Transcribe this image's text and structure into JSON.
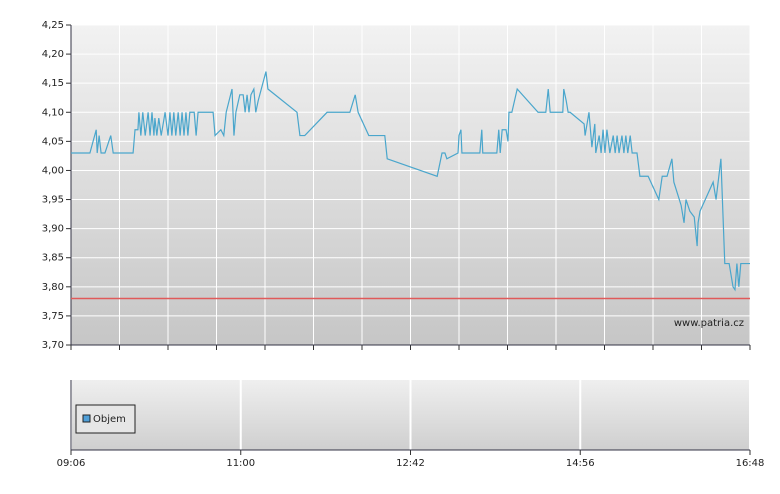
{
  "chart_data": [
    {
      "type": "line",
      "x": [
        0,
        0.39,
        0.52,
        0.54,
        0.58,
        0.62,
        0.7,
        0.82,
        0.87,
        1.28,
        1.32,
        1.38,
        1.4,
        1.44,
        1.48,
        1.53,
        1.59,
        1.63,
        1.67,
        1.71,
        1.73,
        1.77,
        1.81,
        1.86,
        1.94,
        2.0,
        2.04,
        2.08,
        2.12,
        2.16,
        2.21,
        2.25,
        2.29,
        2.33,
        2.37,
        2.41,
        2.45,
        2.54,
        2.58,
        2.62,
        2.93,
        2.97,
        3.09,
        3.15,
        3.2,
        3.26,
        3.32,
        3.36,
        3.4,
        3.48,
        3.55,
        3.59,
        3.63,
        3.67,
        3.71,
        3.77,
        3.81,
        3.86,
        4.02,
        4.06,
        4.66,
        4.72,
        4.82,
        5.28,
        5.75,
        5.86,
        5.92,
        6.14,
        6.47,
        6.52,
        7.55,
        7.65,
        7.71,
        7.75,
        7.98,
        8.0,
        8.04,
        8.06,
        8.43,
        8.47,
        8.49,
        8.78,
        8.82,
        8.85,
        8.89,
        8.97,
        9.01,
        9.03,
        9.09,
        9.2,
        9.63,
        9.79,
        9.84,
        9.88,
        10.14,
        10.16,
        10.21,
        10.25,
        10.29,
        10.58,
        10.6,
        10.68,
        10.7,
        10.74,
        10.8,
        10.82,
        10.89,
        10.93,
        10.97,
        11.01,
        11.05,
        11.11,
        11.18,
        11.22,
        11.26,
        11.3,
        11.36,
        11.4,
        11.44,
        11.48,
        11.53,
        11.57,
        11.67,
        11.73,
        11.9,
        12.12,
        12.19,
        12.29,
        12.39,
        12.43,
        12.58,
        12.64,
        12.68,
        12.76,
        12.85,
        12.91,
        12.93,
        12.97,
        13.24,
        13.3,
        13.4,
        13.48,
        13.57,
        13.65,
        13.69,
        13.73,
        13.77,
        13.81,
        14
      ],
      "series": [
        {
          "color": "#4aa6cc",
          "values": [
            4.03,
            4.03,
            4.07,
            4.03,
            4.06,
            4.03,
            4.03,
            4.06,
            4.03,
            4.03,
            4.07,
            4.07,
            4.1,
            4.06,
            4.1,
            4.06,
            4.1,
            4.06,
            4.1,
            4.06,
            4.09,
            4.06,
            4.09,
            4.06,
            4.1,
            4.06,
            4.1,
            4.06,
            4.1,
            4.06,
            4.1,
            4.06,
            4.1,
            4.06,
            4.1,
            4.06,
            4.1,
            4.1,
            4.06,
            4.1,
            4.1,
            4.06,
            4.07,
            4.06,
            4.1,
            4.12,
            4.14,
            4.06,
            4.1,
            4.13,
            4.13,
            4.1,
            4.13,
            4.1,
            4.13,
            4.14,
            4.1,
            4.12,
            4.17,
            4.14,
            4.1,
            4.06,
            4.06,
            4.1,
            4.1,
            4.13,
            4.1,
            4.06,
            4.06,
            4.02,
            3.99,
            4.03,
            4.03,
            4.02,
            4.03,
            4.06,
            4.07,
            4.03,
            4.03,
            4.07,
            4.03,
            4.03,
            4.07,
            4.03,
            4.07,
            4.07,
            4.05,
            4.1,
            4.1,
            4.14,
            4.1,
            4.1,
            4.14,
            4.1,
            4.1,
            4.14,
            4.12,
            4.1,
            4.1,
            4.08,
            4.06,
            4.1,
            4.08,
            4.04,
            4.08,
            4.03,
            4.06,
            4.03,
            4.07,
            4.03,
            4.07,
            4.03,
            4.06,
            4.03,
            4.06,
            4.03,
            4.06,
            4.03,
            4.06,
            4.03,
            4.06,
            4.03,
            4.03,
            3.99,
            3.99,
            3.95,
            3.99,
            3.99,
            4.02,
            3.98,
            3.94,
            3.91,
            3.95,
            3.93,
            3.92,
            3.87,
            3.91,
            3.93,
            3.98,
            3.95,
            4.02,
            3.84,
            3.84,
            3.8,
            3.795,
            3.84,
            3.8,
            3.84,
            3.84
          ]
        }
      ],
      "xlim": [
        0,
        14
      ],
      "xgrid": [
        0,
        1,
        2,
        3,
        4,
        5,
        6,
        7,
        8,
        9,
        10,
        11,
        12,
        13,
        14
      ],
      "ylim": [
        3.7,
        4.25
      ],
      "yticks": [
        {
          "value": 3.7,
          "label": "3,70"
        },
        {
          "value": 3.75,
          "label": "3,75"
        },
        {
          "value": 3.8,
          "label": "3,80"
        },
        {
          "value": 3.85,
          "label": "3,85"
        },
        {
          "value": 3.9,
          "label": "3,90"
        },
        {
          "value": 3.95,
          "label": "3,95"
        },
        {
          "value": 4.0,
          "label": "4,00"
        },
        {
          "value": 4.05,
          "label": "4,05"
        },
        {
          "value": 4.1,
          "label": "4,10"
        },
        {
          "value": 4.15,
          "label": "4,15"
        },
        {
          "value": 4.2,
          "label": "4,20"
        },
        {
          "value": 4.25,
          "label": "4,25"
        }
      ],
      "reference_line": {
        "value": 3.78,
        "color": "#e05a5a"
      },
      "watermark": "www.patria.cz",
      "grid": true
    },
    {
      "type": "bar",
      "series": [
        {
          "name": "Objem",
          "color": "#4f9fd8",
          "values": []
        }
      ],
      "xlim": [
        0,
        14
      ],
      "xticks": [
        {
          "value": 0,
          "label": "09:06"
        },
        {
          "value": 3.5,
          "label": "11:00"
        },
        {
          "value": 7,
          "label": "12:42"
        },
        {
          "value": 10.5,
          "label": "14:56"
        },
        {
          "value": 14,
          "label": "16:48"
        }
      ],
      "legend": "bottom-left",
      "grid": true
    }
  ]
}
